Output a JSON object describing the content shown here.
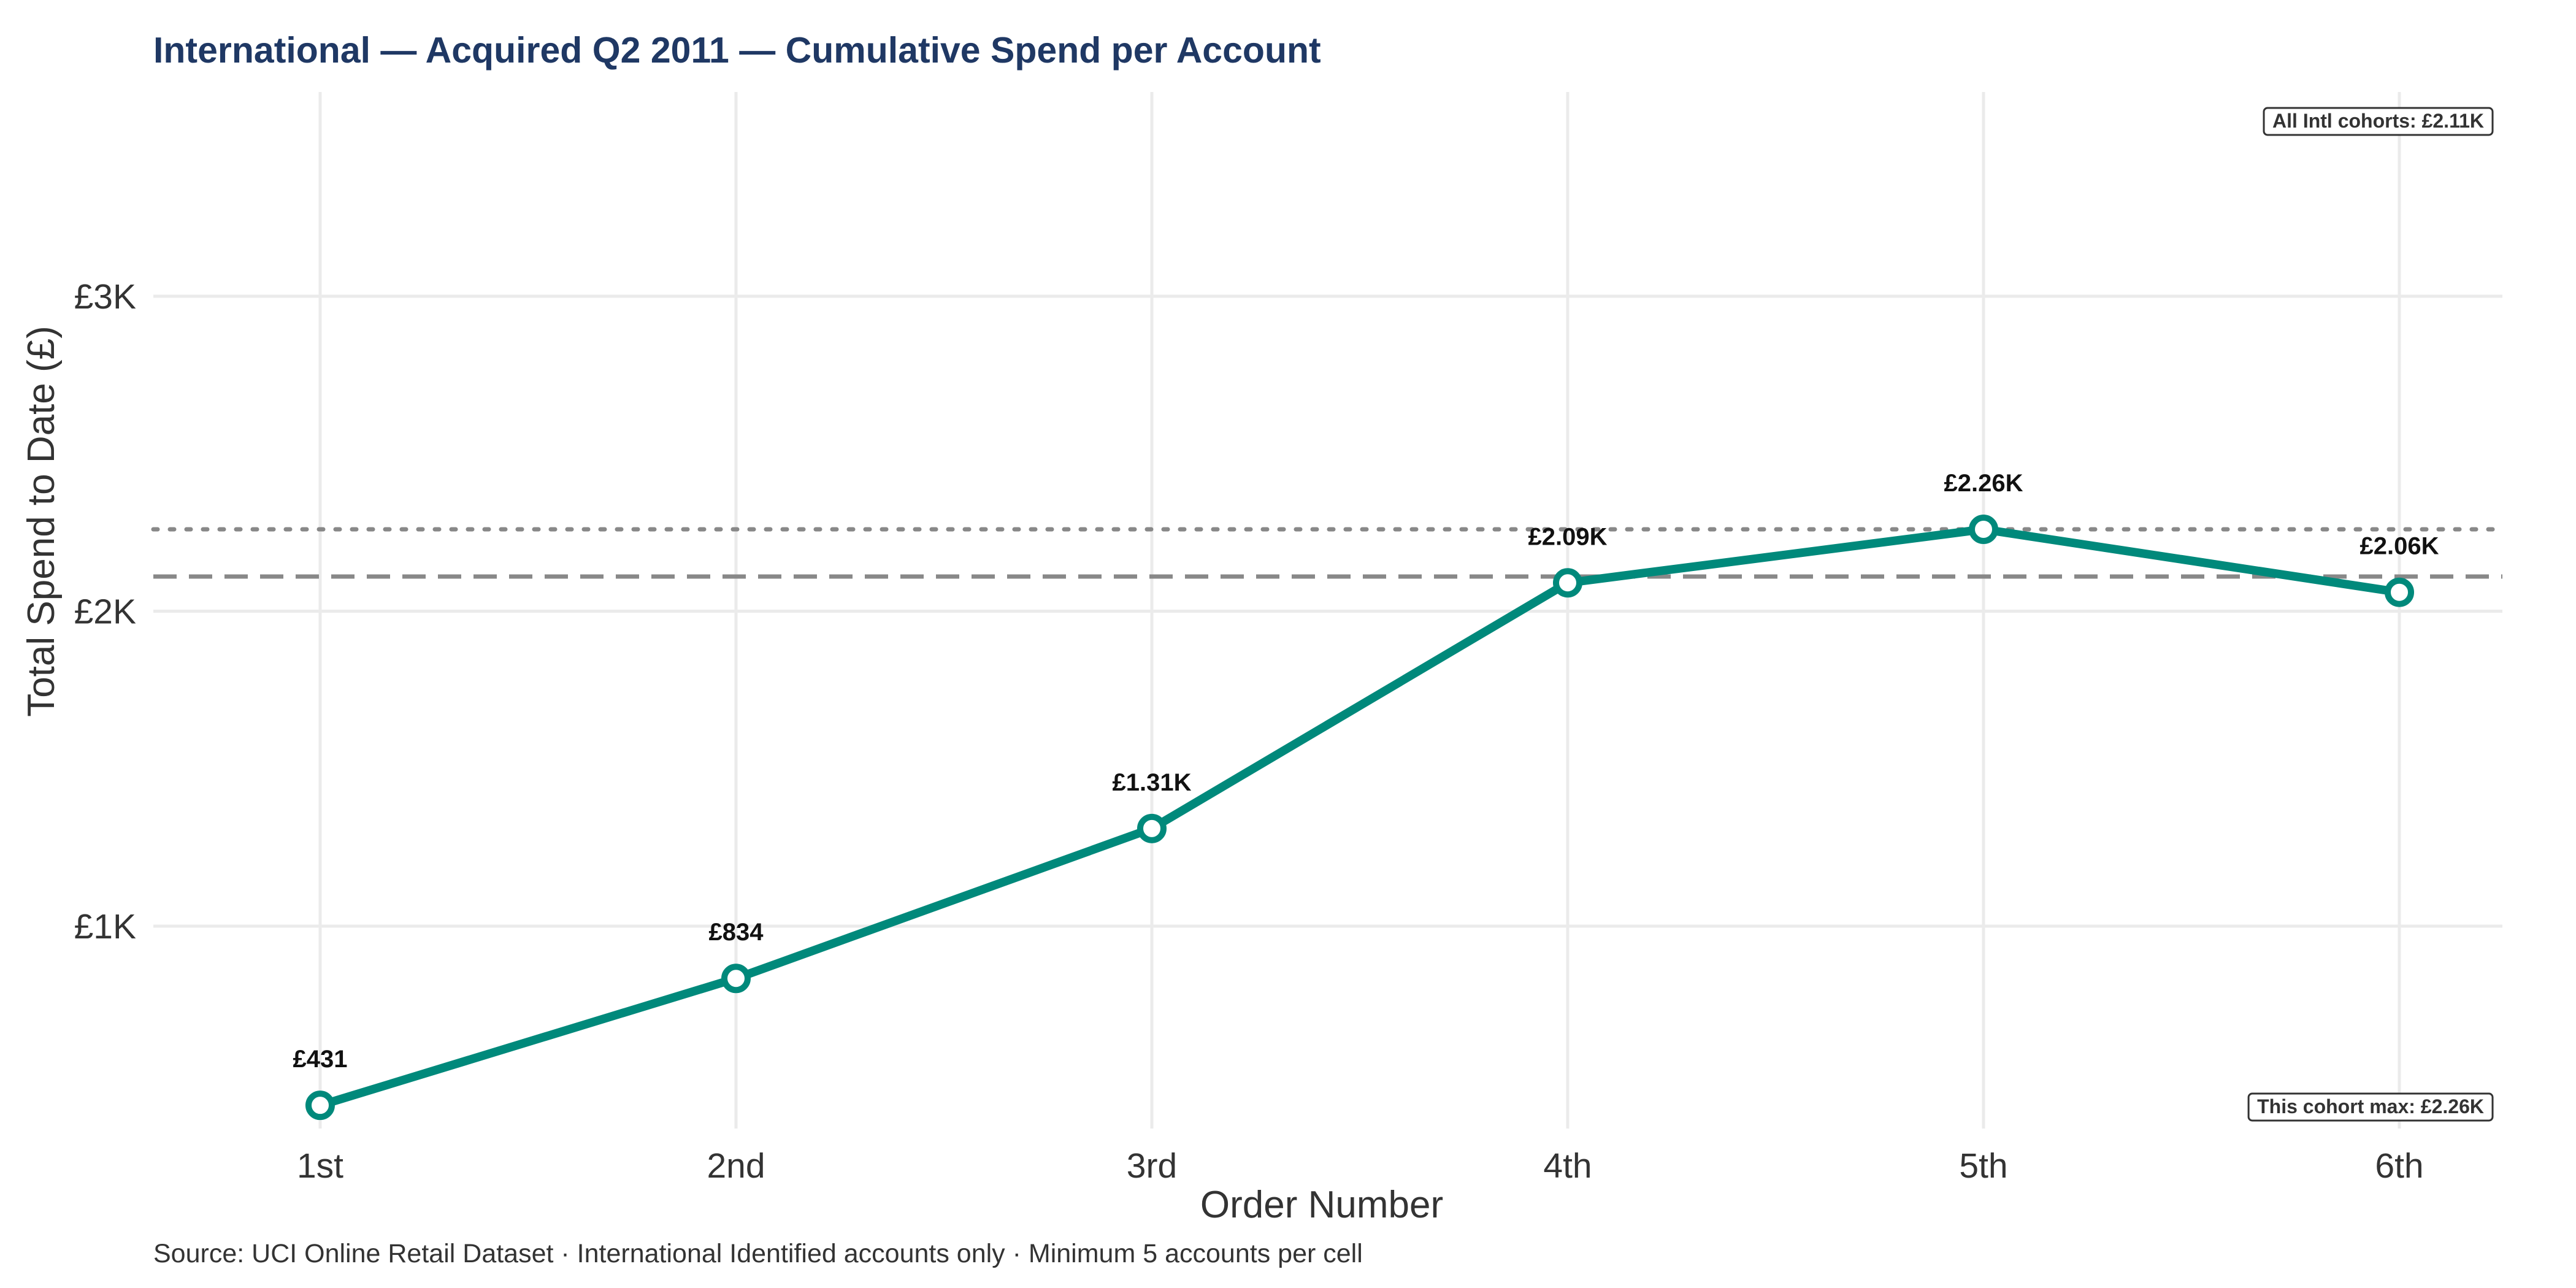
{
  "chart_data": {
    "type": "line",
    "title": "International — Acquired Q2 2011 — Cumulative Spend per Account",
    "xlabel": "Order Number",
    "ylabel": "Total Spend to Date (£)",
    "categories": [
      "1st",
      "2nd",
      "3rd",
      "4th",
      "5th",
      "6th"
    ],
    "series": [
      {
        "values": [
          431,
          834,
          1310,
          2090,
          2260,
          2060
        ],
        "labels": [
          "£431",
          "£834",
          "£1.31K",
          "£2.09K",
          "£2.26K",
          "£2.06K"
        ],
        "color": "#00897b"
      }
    ],
    "ylim": [
      350,
      3650
    ],
    "yticks": [
      1000,
      2000,
      3000
    ],
    "ytick_labels": [
      "£1K",
      "£2K",
      "£3K"
    ],
    "grid": true,
    "reference_lines": [
      {
        "value": 2110,
        "style": "dashed",
        "color": "#888888",
        "label": "All Intl cohorts: £2.11K",
        "label_position": "top-right"
      },
      {
        "value": 2260,
        "style": "dotted",
        "color": "#888888",
        "label": "This cohort max: £2.26K",
        "label_position": "bottom-right"
      }
    ],
    "caption": "Source: UCI Online Retail Dataset · International Identified accounts only · Minimum 5 accounts per cell"
  }
}
